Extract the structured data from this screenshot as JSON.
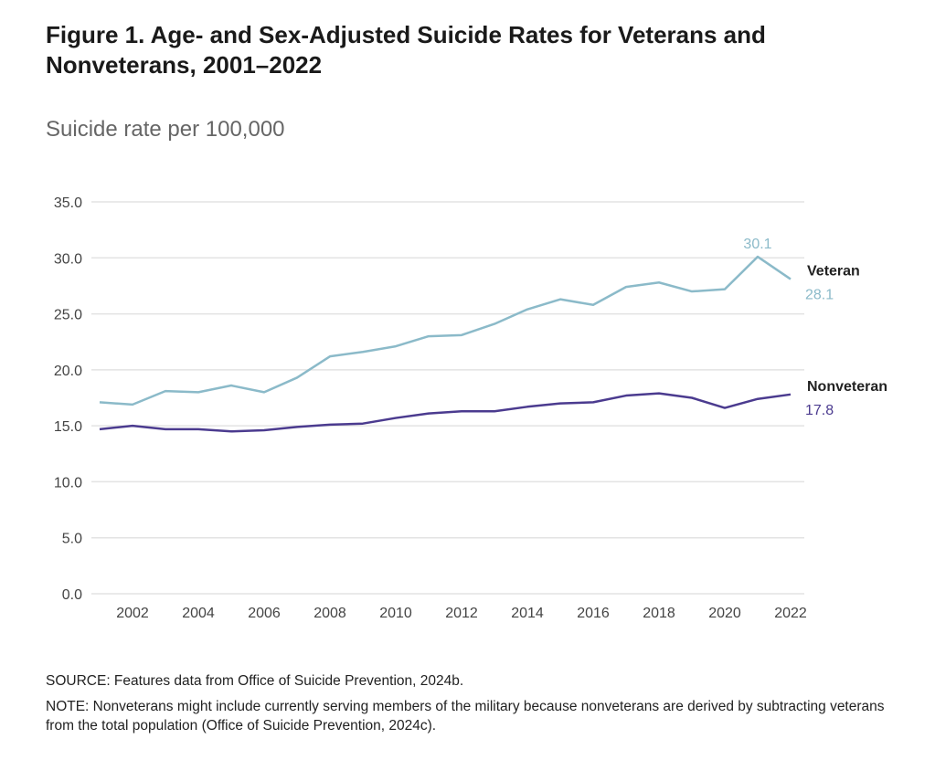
{
  "chart_data": {
    "type": "line",
    "title": "Figure 1. Age- and Sex-Adjusted Suicide Rates for Veterans and Nonveterans, 2001–2022",
    "ylabel": "Suicide rate per 100,000",
    "xlabel": "",
    "ylim": [
      0,
      35
    ],
    "yticks": [
      "0.0",
      "5.0",
      "10.0",
      "15.0",
      "20.0",
      "25.0",
      "30.0",
      "35.0"
    ],
    "xticks": [
      "2002",
      "2004",
      "2006",
      "2008",
      "2010",
      "2012",
      "2014",
      "2016",
      "2018",
      "2020",
      "2022"
    ],
    "grid": true,
    "x": [
      2001,
      2002,
      2003,
      2004,
      2005,
      2006,
      2007,
      2008,
      2009,
      2010,
      2011,
      2012,
      2013,
      2014,
      2015,
      2016,
      2017,
      2018,
      2019,
      2020,
      2021,
      2022
    ],
    "series": [
      {
        "name": "Veteran",
        "color": "#8bbac9",
        "end_label": "28.1",
        "peak_label": "30.1",
        "values": [
          17.1,
          16.9,
          18.1,
          18.0,
          18.6,
          18.0,
          19.3,
          21.2,
          21.6,
          22.1,
          23.0,
          23.1,
          24.1,
          25.4,
          26.3,
          25.8,
          27.4,
          27.8,
          27.0,
          27.2,
          30.1,
          28.1
        ]
      },
      {
        "name": "Nonveteran",
        "color": "#4b3b8f",
        "end_label": "17.8",
        "values": [
          14.7,
          15.0,
          14.7,
          14.7,
          14.5,
          14.6,
          14.9,
          15.1,
          15.2,
          15.7,
          16.1,
          16.3,
          16.3,
          16.7,
          17.0,
          17.1,
          17.7,
          17.9,
          17.5,
          16.6,
          17.4,
          17.8
        ]
      }
    ]
  },
  "source": "SOURCE: Features data from Office of Suicide Prevention, 2024b.",
  "note": "NOTE: Nonveterans might include currently serving members of the military because nonveterans are derived by subtracting veterans from the total population (Office of Suicide Prevention, 2024c)."
}
